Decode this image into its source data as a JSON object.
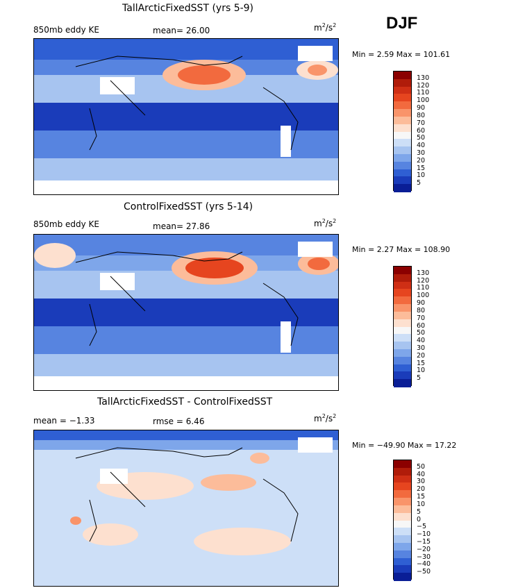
{
  "season": "DJF",
  "units_label": "m2/s2",
  "panels": [
    {
      "title": "TallArcticFixedSST (yrs 5-9)",
      "left_label": "850mb eddy KE",
      "center_label": "mean=  26.00",
      "min_max": "Min =    2.59 Max =  101.61"
    },
    {
      "title": "ControlFixedSST (yrs 5-14)",
      "left_label": "850mb eddy KE",
      "center_label": "mean=  27.86",
      "min_max": "Min =    2.27 Max =  108.90"
    },
    {
      "title": "TallArcticFixedSST - ControlFixedSST",
      "left_label": "mean =  −1.33",
      "center_label": "rmse =    6.46",
      "min_max": "Min = −49.90 Max =  17.22"
    }
  ],
  "chart_data": [
    {
      "type": "heatmap",
      "title": "TallArcticFixedSST (yrs 5-9)",
      "variable": "850mb eddy KE",
      "mean": 26.0,
      "min": 2.59,
      "max": 101.61,
      "units": "m2/s2",
      "colorbar_levels": [
        "130",
        "120",
        "110",
        "100",
        "90",
        "80",
        "70",
        "60",
        "50",
        "40",
        "30",
        "20",
        "15",
        "10",
        "5"
      ],
      "colorbar_colors": [
        "#8b0000",
        "#b01c0a",
        "#cf2f15",
        "#e6451f",
        "#f26a3e",
        "#f9946a",
        "#fcbc9a",
        "#fde0cf",
        "#f7f7f7",
        "#cddff7",
        "#a7c4f0",
        "#7ea6ea",
        "#5784e0",
        "#2f5fd3",
        "#1a3cba",
        "#0a1e96"
      ]
    },
    {
      "type": "heatmap",
      "title": "ControlFixedSST (yrs 5-14)",
      "variable": "850mb eddy KE",
      "mean": 27.86,
      "min": 2.27,
      "max": 108.9,
      "units": "m2/s2",
      "colorbar_levels": [
        "130",
        "120",
        "110",
        "100",
        "90",
        "80",
        "70",
        "60",
        "50",
        "40",
        "30",
        "20",
        "15",
        "10",
        "5"
      ],
      "colorbar_colors": [
        "#8b0000",
        "#b01c0a",
        "#cf2f15",
        "#e6451f",
        "#f26a3e",
        "#f9946a",
        "#fcbc9a",
        "#fde0cf",
        "#f7f7f7",
        "#cddff7",
        "#a7c4f0",
        "#7ea6ea",
        "#5784e0",
        "#2f5fd3",
        "#1a3cba",
        "#0a1e96"
      ]
    },
    {
      "type": "heatmap",
      "title": "TallArcticFixedSST - ControlFixedSST",
      "mean": -1.33,
      "rmse": 6.46,
      "min": -49.9,
      "max": 17.22,
      "units": "m2/s2",
      "colorbar_levels": [
        "50",
        "40",
        "30",
        "20",
        "15",
        "10",
        "5",
        "0",
        "−5",
        "−10",
        "−15",
        "−20",
        "−30",
        "−40",
        "−50"
      ],
      "colorbar_colors": [
        "#8b0000",
        "#b01c0a",
        "#cf2f15",
        "#e6451f",
        "#f26a3e",
        "#f9946a",
        "#fcbc9a",
        "#fde0cf",
        "#f7f7f7",
        "#cddff7",
        "#a7c4f0",
        "#7ea6ea",
        "#5784e0",
        "#2f5fd3",
        "#1a3cba",
        "#0a1e96"
      ]
    }
  ]
}
